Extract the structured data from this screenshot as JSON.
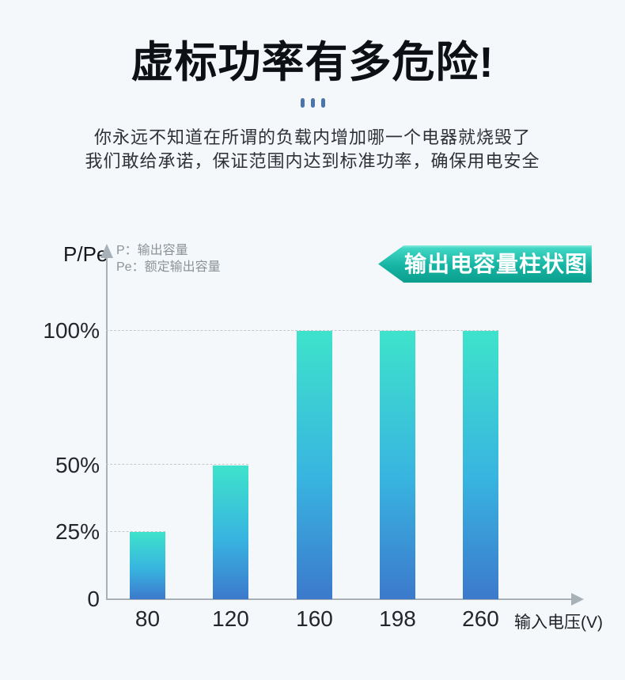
{
  "header": {
    "title": "虚标功率有多危险!",
    "subtitle_line1": "你永远不知道在所谓的负载内增加哪一个电器就烧毁了",
    "subtitle_line2": "我们敢给承诺，保证范围内达到标准功率，确保用电安全"
  },
  "chart": {
    "y_axis_label": "P/Pe",
    "legend_p": "P：输出容量",
    "legend_pe": "Pe：额定输出容量",
    "badge_title": "输出电容量柱状图"
  },
  "chart_data": {
    "type": "bar",
    "title": "输出电容量柱状图",
    "categories": [
      "80",
      "120",
      "160",
      "198",
      "260"
    ],
    "values": [
      25,
      50,
      100,
      100,
      100
    ],
    "xlabel": "输入电压(V)",
    "ylabel": "P/Pe",
    "ylim": [
      0,
      100
    ],
    "y_ticks": [
      "0",
      "25%",
      "50%",
      "100%"
    ],
    "legend": [
      "P：输出容量",
      "Pe：额定输出容量"
    ],
    "legend_position": "top-left",
    "grid": "horizontal-dashed",
    "colors": {
      "background": "#f4f8fb",
      "bar_gradient_top": "#3ee3cb",
      "bar_gradient_mid": "#38b4e0",
      "bar_gradient_bottom": "#3c79cc",
      "badge_teal": "#16b4a3",
      "title_dots_blue": "#4c75ac",
      "axis_gray": "#a9b1b8",
      "grid_gray": "#c3c9ce",
      "tick_text": "#23272c"
    }
  }
}
